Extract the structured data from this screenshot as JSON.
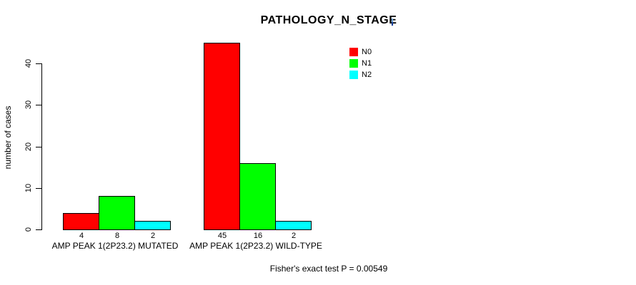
{
  "chart_data": {
    "type": "bar",
    "title": "PATHOLOGY_N_STAGE",
    "xlabel": "",
    "ylabel": "number of cases",
    "ylim": [
      0,
      45
    ],
    "yticks": [
      0,
      10,
      20,
      30,
      40
    ],
    "grid": false,
    "legend_position": "top-right",
    "bar_value_labels_shown": true,
    "categories": [
      "AMP PEAK 1(2P23.2) MUTATED",
      "AMP PEAK 1(2P23.2) WILD-TYPE"
    ],
    "series": [
      {
        "name": "N0",
        "color": "#ff0000",
        "values": [
          4,
          45
        ]
      },
      {
        "name": "N1",
        "color": "#00ff00",
        "values": [
          8,
          16
        ]
      },
      {
        "name": "N2",
        "color": "#00ffff",
        "values": [
          2,
          2
        ]
      }
    ],
    "annotation": "Fisher's exact test P = 0.00549"
  },
  "decorations": {
    "caret_top_color": "#6ea3d8",
    "caret_bottom_color": "#123f9b",
    "axis_color": "#000000",
    "background_color": "#ffffff"
  }
}
